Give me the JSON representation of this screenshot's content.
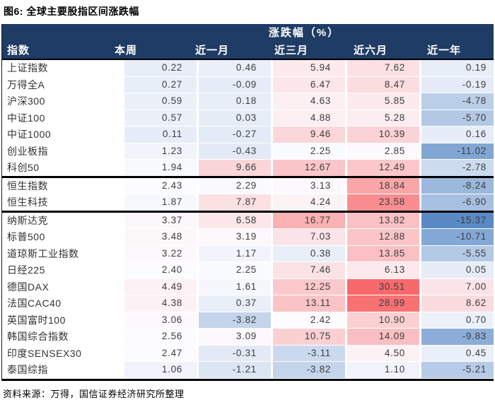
{
  "chart_data": {
    "type": "table",
    "title": "图6: 全球主要股指区间涨跌幅",
    "group_header": "涨跌幅（%）",
    "columns": [
      "指数",
      "本周",
      "近一月",
      "近三月",
      "近六月",
      "近一年"
    ],
    "rows": [
      {
        "name": "上证指数",
        "values": [
          0.22,
          0.46,
          5.94,
          7.62,
          0.19
        ]
      },
      {
        "name": "万得全A",
        "values": [
          0.27,
          -0.09,
          6.47,
          8.47,
          -0.19
        ]
      },
      {
        "name": "沪深300",
        "values": [
          0.59,
          0.18,
          4.63,
          5.85,
          -4.78
        ]
      },
      {
        "name": "中证100",
        "values": [
          0.57,
          0.03,
          4.88,
          5.28,
          -5.7
        ]
      },
      {
        "name": "中证1000",
        "values": [
          0.11,
          -0.27,
          9.46,
          10.39,
          0.16
        ]
      },
      {
        "name": "创业板指",
        "values": [
          1.23,
          -0.43,
          2.25,
          2.85,
          -11.02
        ]
      },
      {
        "name": "科创50",
        "values": [
          1.94,
          9.66,
          12.67,
          12.49,
          -2.78
        ],
        "divider_below": true
      },
      {
        "name": "恒生指数",
        "values": [
          2.43,
          2.29,
          3.13,
          18.84,
          -8.24
        ]
      },
      {
        "name": "恒生科技",
        "values": [
          1.87,
          7.87,
          4.24,
          23.58,
          -6.9
        ],
        "divider_below": true
      },
      {
        "name": "纳斯达克",
        "values": [
          3.37,
          6.58,
          16.77,
          13.82,
          -15.37
        ]
      },
      {
        "name": "标普500",
        "values": [
          3.48,
          3.19,
          7.03,
          12.88,
          -10.71
        ]
      },
      {
        "name": "道琼斯工业指数",
        "values": [
          3.22,
          1.17,
          0.38,
          13.85,
          -5.55
        ]
      },
      {
        "name": "日经225",
        "values": [
          2.4,
          2.25,
          7.46,
          6.13,
          0.05
        ]
      },
      {
        "name": "德国DAX",
        "values": [
          4.49,
          1.61,
          12.25,
          30.51,
          7.0
        ]
      },
      {
        "name": "法国CAC40",
        "values": [
          4.38,
          0.37,
          13.11,
          28.99,
          8.62
        ]
      },
      {
        "name": "英国富时100",
        "values": [
          3.06,
          -3.82,
          2.42,
          10.9,
          0.7
        ]
      },
      {
        "name": "韩国综合指数",
        "values": [
          2.56,
          3.09,
          10.75,
          14.09,
          -9.83
        ]
      },
      {
        "name": "印度SENSEX30",
        "values": [
          2.47,
          -0.31,
          -3.11,
          4.5,
          0.45
        ]
      },
      {
        "name": "泰国综指",
        "values": [
          1.06,
          -1.21,
          -3.82,
          1.1,
          -5.21
        ]
      }
    ],
    "source": "资料来源：万得，国信证券经济研究所整理",
    "colors": {
      "header_bg": "#1e3c64",
      "header_text": "#ffffff",
      "scale": {
        "min": -15.37,
        "mid": 2.43,
        "max": 30.51,
        "min_color": "#5a8ac6",
        "mid_color": "#fcfcff",
        "max_color": "#f8696b"
      }
    }
  }
}
